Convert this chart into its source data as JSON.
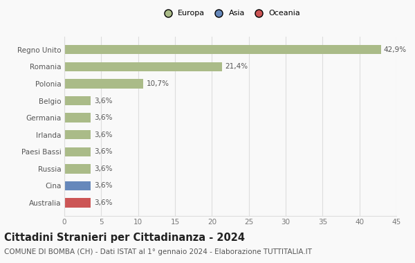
{
  "categories": [
    "Australia",
    "Cina",
    "Russia",
    "Paesi Bassi",
    "Irlanda",
    "Germania",
    "Belgio",
    "Polonia",
    "Romania",
    "Regno Unito"
  ],
  "values": [
    3.6,
    3.6,
    3.6,
    3.6,
    3.6,
    3.6,
    3.6,
    10.7,
    21.4,
    42.9
  ],
  "labels": [
    "3,6%",
    "3,6%",
    "3,6%",
    "3,6%",
    "3,6%",
    "3,6%",
    "3,6%",
    "10,7%",
    "21,4%",
    "42,9%"
  ],
  "colors": [
    "#cc5555",
    "#6688bb",
    "#aabb88",
    "#aabb88",
    "#aabb88",
    "#aabb88",
    "#aabb88",
    "#aabb88",
    "#aabb88",
    "#aabb88"
  ],
  "legend": [
    {
      "label": "Europa",
      "color": "#aabb88"
    },
    {
      "label": "Asia",
      "color": "#6688bb"
    },
    {
      "label": "Oceania",
      "color": "#cc5555"
    }
  ],
  "xlim": [
    0,
    45
  ],
  "xticks": [
    0,
    5,
    10,
    15,
    20,
    25,
    30,
    35,
    40,
    45
  ],
  "title": "Cittadini Stranieri per Cittadinanza - 2024",
  "subtitle": "COMUNE DI BOMBA (CH) - Dati ISTAT al 1° gennaio 2024 - Elaborazione TUTTITALIA.IT",
  "background_color": "#f9f9f9",
  "grid_color": "#dddddd",
  "bar_height": 0.55,
  "title_fontsize": 10.5,
  "subtitle_fontsize": 7.5,
  "label_fontsize": 7.5,
  "tick_fontsize": 7.5,
  "ylabel_fontsize": 7.5
}
